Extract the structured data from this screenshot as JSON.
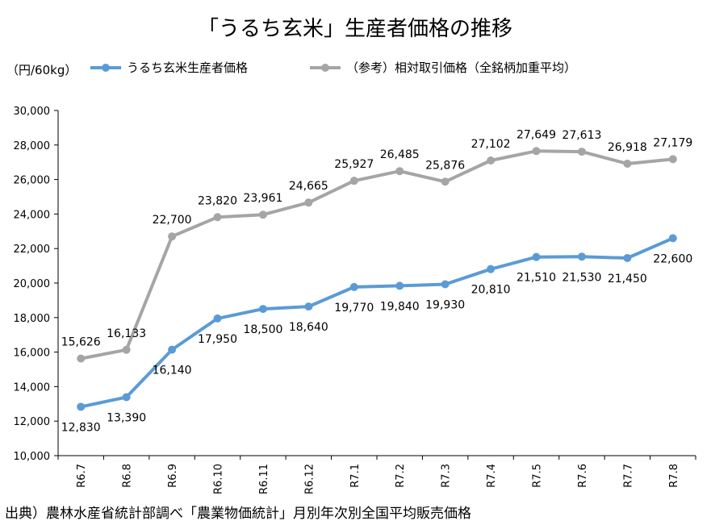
{
  "chart_data": {
    "type": "line",
    "title": "「うるち玄米」生産者価格の推移",
    "ylabel": "（円/60kg）",
    "xlabel": "",
    "ylim": [
      10000,
      30000
    ],
    "yticks": [
      "10,000",
      "12,000",
      "14,000",
      "16,000",
      "18,000",
      "20,000",
      "22,000",
      "24,000",
      "26,000",
      "28,000",
      "30,000"
    ],
    "ytick_values": [
      10000,
      12000,
      14000,
      16000,
      18000,
      20000,
      22000,
      24000,
      26000,
      28000,
      30000
    ],
    "categories": [
      "R6.7",
      "R6.8",
      "R6.9",
      "R6.10",
      "R6.11",
      "R6.12",
      "R7.1",
      "R7.2",
      "R7.3",
      "R7.4",
      "R7.5",
      "R7.6",
      "R7.7",
      "R7.8"
    ],
    "grid": false,
    "legend_position": "top",
    "series": [
      {
        "name": "うるち玄米生産者価格",
        "color": "#5B9BD5",
        "values": [
          12830,
          13390,
          16140,
          17950,
          18500,
          18640,
          19770,
          19840,
          19930,
          20810,
          21510,
          21530,
          21450,
          22600
        ],
        "labels": [
          "12,830",
          "13,390",
          "16,140",
          "17,950",
          "18,500",
          "18,640",
          "19,770",
          "19,840",
          "19,930",
          "20,810",
          "21,510",
          "21,530",
          "21,450",
          "22,600"
        ]
      },
      {
        "name": "（参考）相対取引価格（全銘柄加重平均）",
        "color": "#A5A5A5",
        "values": [
          15626,
          16133,
          22700,
          23820,
          23961,
          24665,
          25927,
          26485,
          25876,
          27102,
          27649,
          27613,
          26918,
          27179
        ],
        "labels": [
          "15,626",
          "16,133",
          "22,700",
          "23,820",
          "23,961",
          "24,665",
          "25,927",
          "26,485",
          "25,876",
          "27,102",
          "27,649",
          "27,613",
          "26,918",
          "27,179"
        ]
      }
    ]
  },
  "source": "出典）農林水産省統計部調べ「農業物価統計」月別年次別全国平均販売価格"
}
